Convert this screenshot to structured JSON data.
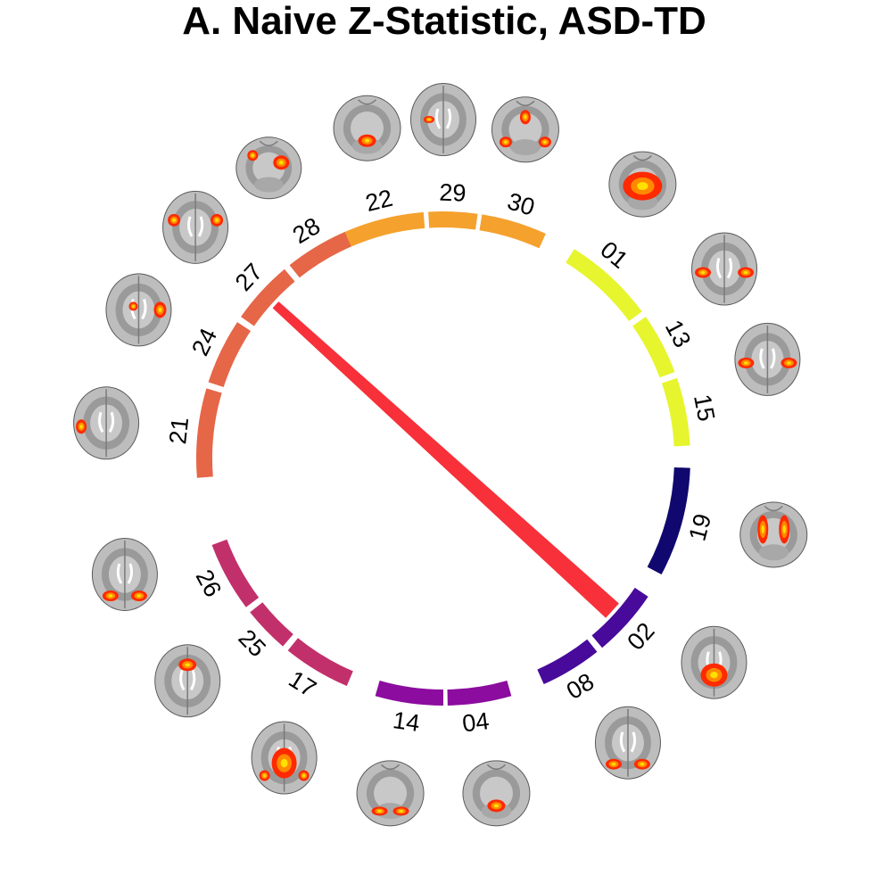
{
  "title": "A. Naive Z-Statistic, ASD-TD",
  "nodes": [
    {
      "id": "22",
      "label": "22",
      "color": "#F5A12D",
      "group": "orange"
    },
    {
      "id": "29",
      "label": "29",
      "color": "#F5A12D",
      "group": "orange"
    },
    {
      "id": "30",
      "label": "30",
      "color": "#F5A12D",
      "group": "orange"
    },
    {
      "id": "01",
      "label": "01",
      "color": "#E6F52D",
      "group": "yellow"
    },
    {
      "id": "13",
      "label": "13",
      "color": "#E6F52D",
      "group": "yellow"
    },
    {
      "id": "15",
      "label": "15",
      "color": "#E6F52D",
      "group": "yellow"
    },
    {
      "id": "19",
      "label": "19",
      "color": "#10086E",
      "group": "navy"
    },
    {
      "id": "02",
      "label": "02",
      "color": "#480A9A",
      "group": "indigo"
    },
    {
      "id": "08",
      "label": "08",
      "color": "#480A9A",
      "group": "indigo"
    },
    {
      "id": "04",
      "label": "04",
      "color": "#8B0C9E",
      "group": "purple"
    },
    {
      "id": "14",
      "label": "14",
      "color": "#8B0C9E",
      "group": "purple"
    },
    {
      "id": "17",
      "label": "17",
      "color": "#C2306B",
      "group": "magenta"
    },
    {
      "id": "25",
      "label": "25",
      "color": "#C2306B",
      "group": "magenta"
    },
    {
      "id": "26",
      "label": "26",
      "color": "#C2306B",
      "group": "magenta"
    },
    {
      "id": "21",
      "label": "21",
      "color": "#E66648",
      "group": "coral"
    },
    {
      "id": "24",
      "label": "24",
      "color": "#E66648",
      "group": "coral"
    },
    {
      "id": "27",
      "label": "27",
      "color": "#E66648",
      "group": "coral"
    },
    {
      "id": "28",
      "label": "28",
      "color": "#E66648",
      "group": "coral"
    }
  ],
  "edges": [
    {
      "from": "27",
      "to": "02",
      "color": "#F7303A"
    }
  ],
  "brain_thumbnails": [
    {
      "node": "22",
      "view": "coronal",
      "activation": "bottom-center"
    },
    {
      "node": "29",
      "view": "axial",
      "activation": "left-small"
    },
    {
      "node": "30",
      "view": "coronal",
      "activation": "top-and-sides"
    },
    {
      "node": "01",
      "view": "posterior",
      "activation": "large-central"
    },
    {
      "node": "13",
      "view": "axial",
      "activation": "bilateral-side"
    },
    {
      "node": "15",
      "view": "axial",
      "activation": "bilateral-side"
    },
    {
      "node": "19",
      "view": "coronal",
      "activation": "bilateral-top"
    },
    {
      "node": "02",
      "view": "axial",
      "activation": "posterior-central"
    },
    {
      "node": "08",
      "view": "axial",
      "activation": "bilateral-posterior"
    },
    {
      "node": "04",
      "view": "coronal",
      "activation": "bottom-center"
    },
    {
      "node": "14",
      "view": "coronal",
      "activation": "bilateral-bottom"
    },
    {
      "node": "17",
      "view": "axial",
      "activation": "central-posterior"
    },
    {
      "node": "25",
      "view": "axial",
      "activation": "frontal-top"
    },
    {
      "node": "26",
      "view": "axial",
      "activation": "bilateral-posterior"
    },
    {
      "node": "21",
      "view": "axial",
      "activation": "left-side"
    },
    {
      "node": "24",
      "view": "axial",
      "activation": "right-side"
    },
    {
      "node": "27",
      "view": "axial",
      "activation": "bilateral-frontal"
    },
    {
      "node": "28",
      "view": "sagittal",
      "activation": "two-spots"
    }
  ]
}
